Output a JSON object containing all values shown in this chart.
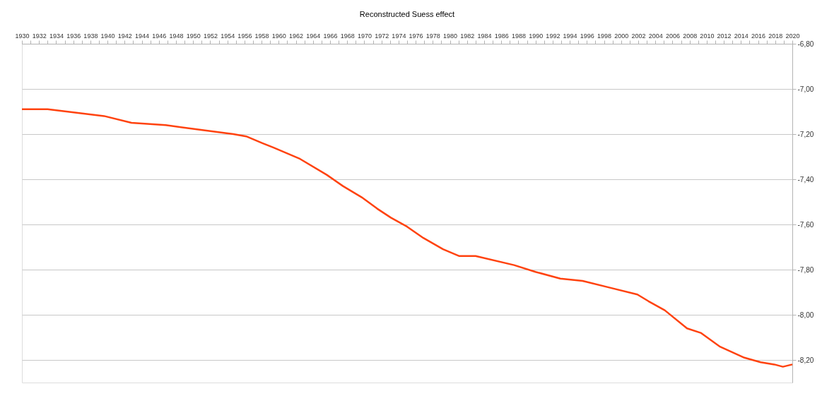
{
  "chart_data": {
    "type": "line",
    "title": "Reconstructed Suess effect",
    "x": [
      1930,
      1933.0,
      1935.2,
      1939.6,
      1942.8,
      1946.8,
      1950.6,
      1954.7,
      1956.2,
      1958.1,
      1959.4,
      1962.5,
      1965.6,
      1967.5,
      1969.7,
      1971.5,
      1973.1,
      1975.0,
      1976.9,
      1979.2,
      1981.1,
      1983.0,
      1987.5,
      1990.0,
      1992.9,
      1995.5,
      1998.7,
      2001.9,
      2003.2,
      2005.1,
      2007.7,
      2009.3,
      2011.5,
      2014.4,
      2016.3,
      2017.9,
      2018.9,
      2020
    ],
    "series": [
      {
        "color": "#ff420e",
        "values": [
          -7.09,
          -7.09,
          -7.1,
          -7.12,
          -7.15,
          -7.16,
          -7.18,
          -7.2,
          -7.21,
          -7.24,
          -7.26,
          -7.31,
          -7.38,
          -7.43,
          -7.48,
          -7.53,
          -7.57,
          -7.61,
          -7.66,
          -7.71,
          -7.74,
          -7.74,
          -7.78,
          -7.81,
          -7.84,
          -7.85,
          -7.88,
          -7.91,
          -7.94,
          -7.98,
          -8.06,
          -8.08,
          -8.14,
          -8.19,
          -8.21,
          -8.22,
          -8.23,
          -8.22
        ]
      }
    ],
    "xlim": [
      1930,
      2020
    ],
    "xticks": [
      1930,
      {
        "value": 1931,
        "label": null
      },
      1932,
      {
        "value": 1933,
        "label": null
      },
      1934,
      {
        "value": 1935,
        "label": null
      },
      1936,
      {
        "value": 1937,
        "label": null
      },
      1938,
      {
        "value": 1939,
        "label": null
      },
      1940,
      {
        "value": 1941,
        "label": null
      },
      1942,
      {
        "value": 1943,
        "label": null
      },
      1944,
      {
        "value": 1945,
        "label": null
      },
      1946,
      {
        "value": 1947,
        "label": null
      },
      1948,
      {
        "value": 1949,
        "label": null
      },
      1950,
      {
        "value": 1951,
        "label": null
      },
      1952,
      {
        "value": 1953,
        "label": null
      },
      1954,
      {
        "value": 1955,
        "label": null
      },
      1956,
      {
        "value": 1957,
        "label": null
      },
      1958,
      {
        "value": 1959,
        "label": null
      },
      1960,
      {
        "value": 1961,
        "label": null
      },
      1962,
      {
        "value": 1963,
        "label": null
      },
      1964,
      {
        "value": 1965,
        "label": null
      },
      1966,
      {
        "value": 1967,
        "label": null
      },
      1968,
      {
        "value": 1969,
        "label": null
      },
      1970,
      {
        "value": 1971,
        "label": null
      },
      1972,
      {
        "value": 1973,
        "label": null
      },
      1974,
      {
        "value": 1975,
        "label": null
      },
      1976,
      {
        "value": 1977,
        "label": null
      },
      1978,
      {
        "value": 1979,
        "label": null
      },
      1980,
      {
        "value": 1981,
        "label": null
      },
      1982,
      {
        "value": 1983,
        "label": null
      },
      1984,
      {
        "value": 1985,
        "label": null
      },
      1986,
      {
        "value": 1987,
        "label": null
      },
      1988,
      {
        "value": 1989,
        "label": null
      },
      1990,
      {
        "value": 1991,
        "label": null
      },
      1992,
      {
        "value": 1993,
        "label": null
      },
      1994,
      {
        "value": 1995,
        "label": null
      },
      1996,
      {
        "value": 1997,
        "label": null
      },
      1998,
      {
        "value": 1999,
        "label": null
      },
      2000,
      {
        "value": 2001,
        "label": null
      },
      2002,
      {
        "value": 2003,
        "label": null
      },
      2004,
      {
        "value": 2005,
        "label": null
      },
      2006,
      {
        "value": 2007,
        "label": null
      },
      2008,
      {
        "value": 2009,
        "label": null
      },
      2010,
      {
        "value": 2011,
        "label": null
      },
      2012,
      {
        "value": 2013,
        "label": null
      },
      2014,
      {
        "value": 2015,
        "label": null
      },
      2016,
      {
        "value": 2017,
        "label": null
      },
      2018,
      {
        "value": 2019,
        "label": null
      },
      2020
    ],
    "ylim": [
      -8.3,
      -6.8
    ],
    "yticks": [
      {
        "value": -8.2,
        "label": "-8,20"
      },
      {
        "value": -8.0,
        "label": "-8,00"
      },
      {
        "value": -7.8,
        "label": "-7,80"
      },
      {
        "value": -7.6,
        "label": "-7,60"
      },
      {
        "value": -7.4,
        "label": "-7,40"
      },
      {
        "value": -7.2,
        "label": "-7,20"
      },
      {
        "value": -7.0,
        "label": "-7,00"
      },
      {
        "value": -6.8,
        "label": "-6,80"
      }
    ],
    "grid": "y",
    "legend": false,
    "marker": "none",
    "line_style": "solid"
  }
}
